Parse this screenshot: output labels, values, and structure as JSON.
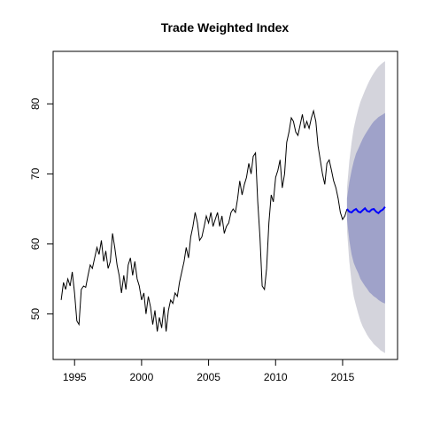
{
  "chart_data": {
    "type": "line",
    "title": "Trade Weighted Index",
    "xlabel": "",
    "ylabel": "",
    "xlim": [
      1993.4,
      2019.1
    ],
    "ylim": [
      43.5,
      87.5
    ],
    "x_ticks": [
      1995,
      2000,
      2005,
      2010,
      2015
    ],
    "x_tick_labels": [
      "1995",
      "2000",
      "2005",
      "2010",
      "2015"
    ],
    "y_ticks": [
      50,
      60,
      70,
      80
    ],
    "y_tick_labels": [
      "50",
      "60",
      "70",
      "80"
    ],
    "grid": false,
    "legend": "none",
    "colors": {
      "history": "#000000",
      "forecast": "#0000ff",
      "interval_80": "#9fa2c9",
      "interval_95": "#d4d4dc"
    },
    "history": {
      "x": [
        1994.0,
        1994.17,
        1994.33,
        1994.5,
        1994.67,
        1994.83,
        1995.0,
        1995.17,
        1995.33,
        1995.5,
        1995.67,
        1995.83,
        1996.0,
        1996.17,
        1996.33,
        1996.5,
        1996.67,
        1996.83,
        1997.0,
        1997.17,
        1997.33,
        1997.5,
        1997.67,
        1997.83,
        1998.0,
        1998.17,
        1998.33,
        1998.5,
        1998.67,
        1998.83,
        1999.0,
        1999.17,
        1999.33,
        1999.5,
        1999.67,
        1999.83,
        2000.0,
        2000.17,
        2000.33,
        2000.5,
        2000.67,
        2000.83,
        2001.0,
        2001.17,
        2001.33,
        2001.5,
        2001.67,
        2001.83,
        2002.0,
        2002.17,
        2002.33,
        2002.5,
        2002.67,
        2002.83,
        2003.0,
        2003.17,
        2003.33,
        2003.5,
        2003.67,
        2003.83,
        2004.0,
        2004.17,
        2004.33,
        2004.5,
        2004.67,
        2004.83,
        2005.0,
        2005.17,
        2005.33,
        2005.5,
        2005.67,
        2005.83,
        2006.0,
        2006.17,
        2006.33,
        2006.5,
        2006.67,
        2006.83,
        2007.0,
        2007.17,
        2007.33,
        2007.5,
        2007.67,
        2007.83,
        2008.0,
        2008.17,
        2008.33,
        2008.5,
        2008.67,
        2008.83,
        2009.0,
        2009.17,
        2009.33,
        2009.5,
        2009.67,
        2009.83,
        2010.0,
        2010.17,
        2010.33,
        2010.5,
        2010.67,
        2010.83,
        2011.0,
        2011.17,
        2011.33,
        2011.5,
        2011.67,
        2011.83,
        2012.0,
        2012.17,
        2012.33,
        2012.5,
        2012.67,
        2012.83,
        2013.0,
        2013.17,
        2013.33,
        2013.5,
        2013.67,
        2013.83,
        2014.0,
        2014.17,
        2014.33,
        2014.5,
        2014.67,
        2014.83,
        2015.0,
        2015.17,
        2015.33
      ],
      "y": [
        52.0,
        54.5,
        53.5,
        55.0,
        54.0,
        56.0,
        53.0,
        49.0,
        48.5,
        53.5,
        54.0,
        53.8,
        55.5,
        57.0,
        56.5,
        58.0,
        59.5,
        58.5,
        60.5,
        57.5,
        59.0,
        56.5,
        57.5,
        61.5,
        59.5,
        57.0,
        55.5,
        53.0,
        55.5,
        53.5,
        57.0,
        58.0,
        55.5,
        57.5,
        55.0,
        54.0,
        52.0,
        53.0,
        50.0,
        52.5,
        51.0,
        48.5,
        50.5,
        47.5,
        49.5,
        48.0,
        51.0,
        47.5,
        50.5,
        52.0,
        51.5,
        53.0,
        52.5,
        54.5,
        56.0,
        57.5,
        59.5,
        58.0,
        61.0,
        62.5,
        64.5,
        63.0,
        60.5,
        61.0,
        62.5,
        64.0,
        63.0,
        64.5,
        62.5,
        63.5,
        64.5,
        62.5,
        64.0,
        61.5,
        62.5,
        63.0,
        64.5,
        65.0,
        64.5,
        66.5,
        69.0,
        67.0,
        68.5,
        69.5,
        71.5,
        70.0,
        72.5,
        73.0,
        66.0,
        61.0,
        54.0,
        53.5,
        56.5,
        63.0,
        67.0,
        66.0,
        69.5,
        70.5,
        72.0,
        68.0,
        70.0,
        74.5,
        76.0,
        78.0,
        77.5,
        76.0,
        75.5,
        77.0,
        78.5,
        76.5,
        77.5,
        76.5,
        78.0,
        79.0,
        77.5,
        74.0,
        72.0,
        70.0,
        68.5,
        71.5,
        72.0,
        70.5,
        69.0,
        68.0,
        66.5,
        64.5,
        63.5,
        64.0,
        65.0
      ]
    },
    "forecast": {
      "x": [
        2015.33,
        2015.5,
        2015.67,
        2015.83,
        2016.0,
        2016.17,
        2016.33,
        2016.5,
        2016.67,
        2016.83,
        2017.0,
        2017.17,
        2017.33,
        2017.5,
        2017.67,
        2017.83,
        2018.0,
        2018.17
      ],
      "mean": [
        65.0,
        64.6,
        64.5,
        64.8,
        65.0,
        64.6,
        64.5,
        64.8,
        65.1,
        64.7,
        64.6,
        64.9,
        65.0,
        64.6,
        64.4,
        64.7,
        64.9,
        65.3
      ],
      "lo80": [
        63.5,
        60.5,
        58.5,
        57.3,
        56.5,
        55.8,
        55.0,
        54.5,
        54.0,
        53.6,
        53.1,
        52.8,
        52.5,
        52.3,
        52.0,
        51.8,
        51.6,
        51.5
      ],
      "hi80": [
        66.5,
        68.8,
        70.5,
        71.8,
        72.9,
        73.6,
        74.3,
        75.0,
        75.6,
        76.1,
        76.6,
        77.1,
        77.5,
        77.8,
        78.1,
        78.3,
        78.5,
        78.7
      ],
      "lo95": [
        62.0,
        57.5,
        54.5,
        52.5,
        51.2,
        50.0,
        49.0,
        48.2,
        47.6,
        47.0,
        46.5,
        46.1,
        45.7,
        45.4,
        45.1,
        44.8,
        44.6,
        44.4
      ],
      "hi95": [
        68.0,
        71.8,
        74.5,
        76.5,
        78.0,
        79.3,
        80.3,
        81.1,
        81.9,
        82.6,
        83.3,
        83.9,
        84.4,
        84.9,
        85.3,
        85.6,
        85.9,
        86.1
      ]
    }
  }
}
